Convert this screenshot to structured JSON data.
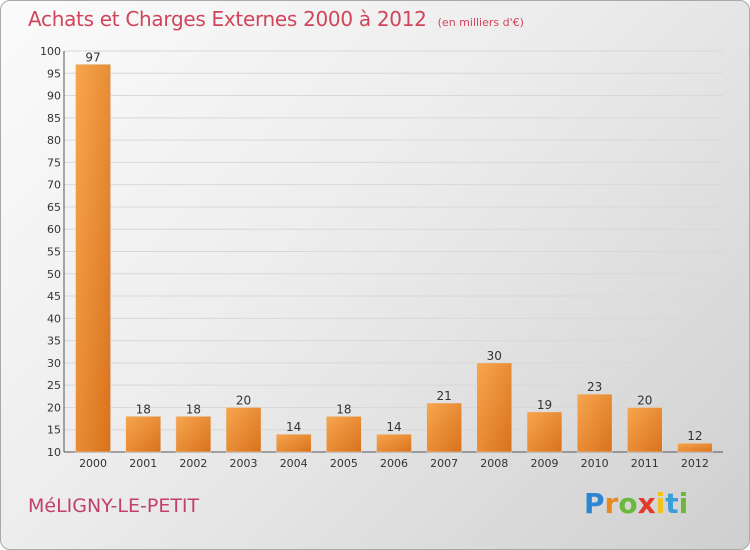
{
  "header": {
    "title": "Achats et Charges Externes 2000 à 2012",
    "subtitle": "(en milliers d'€)"
  },
  "footer": {
    "commune": "MéLIGNY-LE-PETIT",
    "logo_letters": [
      "P",
      "r",
      "o",
      "x",
      "i",
      "t",
      "i"
    ],
    "logo_colors": [
      "#2c86d4",
      "#e98a1f",
      "#6cb83a",
      "#e23b2e",
      "#f0c419",
      "#3a9fd8",
      "#6cb83a"
    ]
  },
  "colors": {
    "bar_light": "#f7a64f",
    "bar_dark": "#d9721c",
    "grid": "#d8d8d8",
    "title": "#d0455c"
  },
  "chart_data": {
    "type": "bar",
    "categories": [
      "2000",
      "2001",
      "2002",
      "2003",
      "2004",
      "2005",
      "2006",
      "2007",
      "2008",
      "2009",
      "2010",
      "2011",
      "2012"
    ],
    "values": [
      97,
      18,
      18,
      20,
      14,
      18,
      14,
      21,
      30,
      19,
      23,
      20,
      12
    ],
    "data_labels": [
      "97",
      "18",
      "18",
      "20",
      "14",
      "18",
      "14",
      "21",
      "30",
      "19",
      "23",
      "20",
      "12"
    ],
    "yticks": [
      "10",
      "15",
      "20",
      "25",
      "30",
      "35",
      "40",
      "45",
      "50",
      "55",
      "60",
      "65",
      "70",
      "75",
      "80",
      "85",
      "90",
      "95",
      "100"
    ],
    "ylim": [
      10,
      100
    ],
    "grid": true,
    "legend": "none"
  }
}
